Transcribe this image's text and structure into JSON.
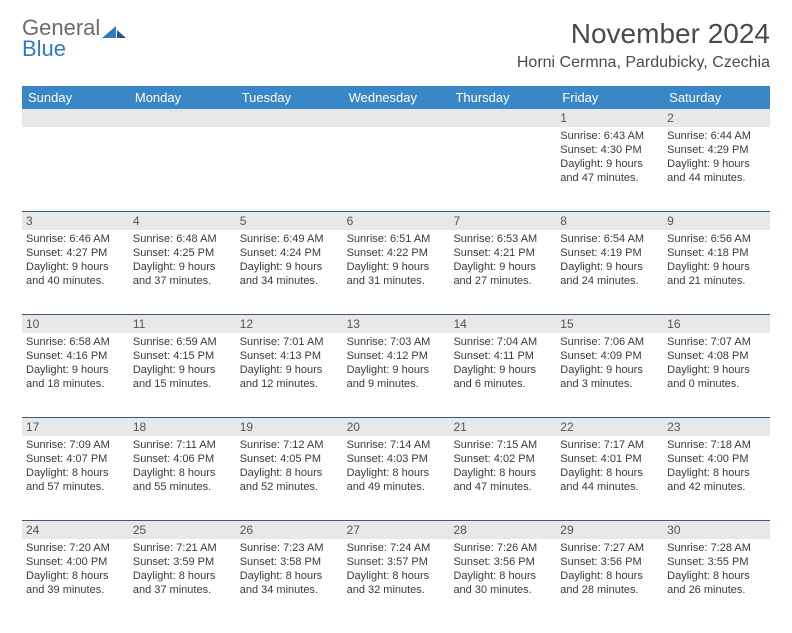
{
  "brand": {
    "line1": "General",
    "line2": "Blue"
  },
  "title": "November 2024",
  "location": "Horni Cermna, Pardubicky, Czechia",
  "colors": {
    "header_bg": "#3a87c8",
    "header_text": "#ffffff",
    "row_divider": "#3a5a7a",
    "daynum_band_bg": "#e8e8e8",
    "body_text": "#3a3a3a",
    "brand_gray": "#6b6b6b",
    "brand_blue": "#2e7cc2"
  },
  "weekdays": [
    "Sunday",
    "Monday",
    "Tuesday",
    "Wednesday",
    "Thursday",
    "Friday",
    "Saturday"
  ],
  "weeks": [
    [
      null,
      null,
      null,
      null,
      null,
      {
        "n": "1",
        "sunrise": "6:43 AM",
        "sunset": "4:30 PM",
        "daylight": "9 hours and 47 minutes."
      },
      {
        "n": "2",
        "sunrise": "6:44 AM",
        "sunset": "4:29 PM",
        "daylight": "9 hours and 44 minutes."
      }
    ],
    [
      {
        "n": "3",
        "sunrise": "6:46 AM",
        "sunset": "4:27 PM",
        "daylight": "9 hours and 40 minutes."
      },
      {
        "n": "4",
        "sunrise": "6:48 AM",
        "sunset": "4:25 PM",
        "daylight": "9 hours and 37 minutes."
      },
      {
        "n": "5",
        "sunrise": "6:49 AM",
        "sunset": "4:24 PM",
        "daylight": "9 hours and 34 minutes."
      },
      {
        "n": "6",
        "sunrise": "6:51 AM",
        "sunset": "4:22 PM",
        "daylight": "9 hours and 31 minutes."
      },
      {
        "n": "7",
        "sunrise": "6:53 AM",
        "sunset": "4:21 PM",
        "daylight": "9 hours and 27 minutes."
      },
      {
        "n": "8",
        "sunrise": "6:54 AM",
        "sunset": "4:19 PM",
        "daylight": "9 hours and 24 minutes."
      },
      {
        "n": "9",
        "sunrise": "6:56 AM",
        "sunset": "4:18 PM",
        "daylight": "9 hours and 21 minutes."
      }
    ],
    [
      {
        "n": "10",
        "sunrise": "6:58 AM",
        "sunset": "4:16 PM",
        "daylight": "9 hours and 18 minutes."
      },
      {
        "n": "11",
        "sunrise": "6:59 AM",
        "sunset": "4:15 PM",
        "daylight": "9 hours and 15 minutes."
      },
      {
        "n": "12",
        "sunrise": "7:01 AM",
        "sunset": "4:13 PM",
        "daylight": "9 hours and 12 minutes."
      },
      {
        "n": "13",
        "sunrise": "7:03 AM",
        "sunset": "4:12 PM",
        "daylight": "9 hours and 9 minutes."
      },
      {
        "n": "14",
        "sunrise": "7:04 AM",
        "sunset": "4:11 PM",
        "daylight": "9 hours and 6 minutes."
      },
      {
        "n": "15",
        "sunrise": "7:06 AM",
        "sunset": "4:09 PM",
        "daylight": "9 hours and 3 minutes."
      },
      {
        "n": "16",
        "sunrise": "7:07 AM",
        "sunset": "4:08 PM",
        "daylight": "9 hours and 0 minutes."
      }
    ],
    [
      {
        "n": "17",
        "sunrise": "7:09 AM",
        "sunset": "4:07 PM",
        "daylight": "8 hours and 57 minutes."
      },
      {
        "n": "18",
        "sunrise": "7:11 AM",
        "sunset": "4:06 PM",
        "daylight": "8 hours and 55 minutes."
      },
      {
        "n": "19",
        "sunrise": "7:12 AM",
        "sunset": "4:05 PM",
        "daylight": "8 hours and 52 minutes."
      },
      {
        "n": "20",
        "sunrise": "7:14 AM",
        "sunset": "4:03 PM",
        "daylight": "8 hours and 49 minutes."
      },
      {
        "n": "21",
        "sunrise": "7:15 AM",
        "sunset": "4:02 PM",
        "daylight": "8 hours and 47 minutes."
      },
      {
        "n": "22",
        "sunrise": "7:17 AM",
        "sunset": "4:01 PM",
        "daylight": "8 hours and 44 minutes."
      },
      {
        "n": "23",
        "sunrise": "7:18 AM",
        "sunset": "4:00 PM",
        "daylight": "8 hours and 42 minutes."
      }
    ],
    [
      {
        "n": "24",
        "sunrise": "7:20 AM",
        "sunset": "4:00 PM",
        "daylight": "8 hours and 39 minutes."
      },
      {
        "n": "25",
        "sunrise": "7:21 AM",
        "sunset": "3:59 PM",
        "daylight": "8 hours and 37 minutes."
      },
      {
        "n": "26",
        "sunrise": "7:23 AM",
        "sunset": "3:58 PM",
        "daylight": "8 hours and 34 minutes."
      },
      {
        "n": "27",
        "sunrise": "7:24 AM",
        "sunset": "3:57 PM",
        "daylight": "8 hours and 32 minutes."
      },
      {
        "n": "28",
        "sunrise": "7:26 AM",
        "sunset": "3:56 PM",
        "daylight": "8 hours and 30 minutes."
      },
      {
        "n": "29",
        "sunrise": "7:27 AM",
        "sunset": "3:56 PM",
        "daylight": "8 hours and 28 minutes."
      },
      {
        "n": "30",
        "sunrise": "7:28 AM",
        "sunset": "3:55 PM",
        "daylight": "8 hours and 26 minutes."
      }
    ]
  ],
  "labels": {
    "sunrise": "Sunrise:",
    "sunset": "Sunset:",
    "daylight": "Daylight:"
  }
}
